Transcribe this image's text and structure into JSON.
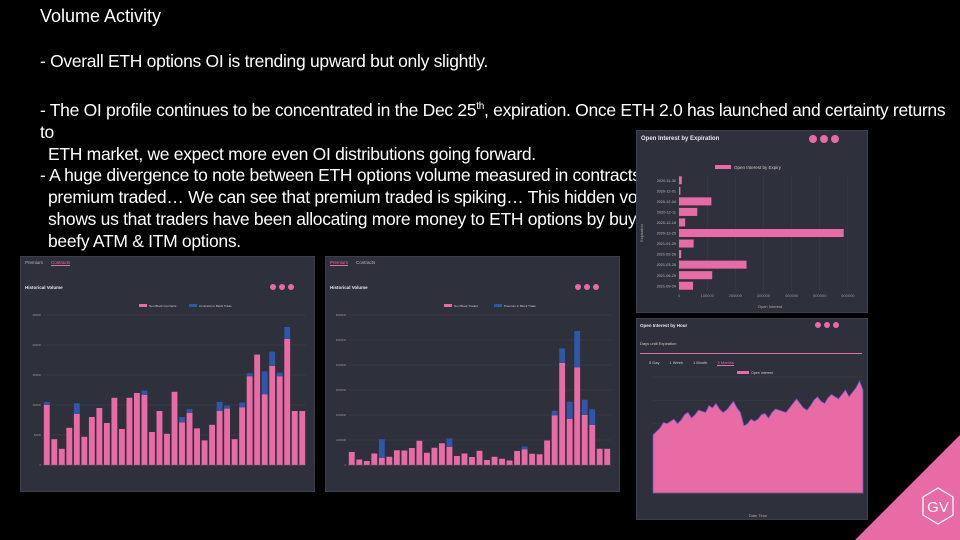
{
  "slide": {
    "title": "Volume Activity",
    "bullet1": "- Overall ETH options OI is trending upward but only slightly.",
    "bullet2_a": "- The OI profile continues to be concentrated in the Dec 25",
    "bullet2_sup": "th",
    "bullet2_b": ", expiration. Once ETH 2.0 has launched and certainty returns to",
    "bullet2_c": "ETH market, we expect more even OI distributions going forward.",
    "bullet3_a": "- A huge divergence to note between ETH options volume measured in contracts vs",
    "bullet3_b": "premium traded… We can see that premium traded is spiking… This hidden volume",
    "bullet3_c": "shows us that traders have been allocating more money to ETH options by buying",
    "bullet3_d": "beefy ATM & ITM options.",
    "logo_text": "GV"
  },
  "colors": {
    "pink": "#e86ba6",
    "blue": "#2f56a8",
    "panel": "#2e303b",
    "logo": "#e86ba6"
  },
  "panel1": {
    "tabs": [
      "Premium",
      "Contracts"
    ],
    "active_tab": "Contracts",
    "title": "Historical Volume",
    "legend": [
      "Non Block Contracts",
      "Contracts in Block Trade"
    ]
  },
  "panel2": {
    "tabs": [
      "Premium",
      "Contracts"
    ],
    "active_tab": "Premium",
    "title": "Historical Volume",
    "legend": [
      "Non Block Traded",
      "Premium in Block Trade"
    ]
  },
  "panel3": {
    "title": "Open Interest by Expiration",
    "legend": "Open Interest by Expiry",
    "ylabel": "Expiration",
    "xlabel": "Open Interest"
  },
  "panel4": {
    "title": "Open Interest by Hour",
    "subtitle": "Days until Expiration",
    "ranges": [
      "5 Day",
      "1 Week",
      "1 Month",
      "3 Months"
    ],
    "active_range": "3 Months",
    "legend": "Open Interest",
    "xlabel": "Date Time"
  },
  "chart_data": [
    {
      "type": "bar",
      "title": "Historical Volume",
      "stacked": true,
      "ylim": [
        0,
        250000
      ],
      "yticks": [
        0,
        50000,
        100000,
        150000,
        200000,
        250000
      ],
      "series": [
        {
          "name": "Non Block Contracts",
          "values": [
            100000,
            43000,
            27000,
            62000,
            85000,
            47000,
            80000,
            95000,
            70000,
            112000,
            60000,
            112000,
            120000,
            117000,
            55000,
            90000,
            52000,
            122000,
            71000,
            87000,
            61000,
            41000,
            67000,
            90000,
            94000,
            43000,
            96000,
            148000,
            184000,
            118000,
            165000,
            148000,
            210000,
            90000,
            90000
          ]
        },
        {
          "name": "Contracts in Block Trade",
          "values": [
            5000,
            0,
            0,
            0,
            18000,
            0,
            0,
            0,
            0,
            0,
            0,
            0,
            0,
            7000,
            0,
            0,
            0,
            0,
            9000,
            6000,
            0,
            0,
            0,
            15000,
            5000,
            0,
            8000,
            5000,
            0,
            38000,
            24000,
            6000,
            20000,
            0,
            0
          ]
        }
      ]
    },
    {
      "type": "bar",
      "title": "Historical Volume",
      "stacked": true,
      "ylim": [
        0,
        6000000
      ],
      "yticks": [
        0,
        1000000,
        2000000,
        3000000,
        4000000,
        5000000,
        6000000
      ],
      "series": [
        {
          "name": "Non Block Traded",
          "values": [
            520000,
            220000,
            160000,
            460000,
            290000,
            330000,
            590000,
            580000,
            680000,
            970000,
            490000,
            690000,
            870000,
            730000,
            360000,
            460000,
            320000,
            570000,
            200000,
            330000,
            250000,
            180000,
            560000,
            630000,
            450000,
            430000,
            980000,
            1980000,
            4080000,
            1850000,
            3900000,
            2000000,
            1600000,
            650000,
            650000
          ]
        },
        {
          "name": "Premium in Block Trade",
          "values": [
            0,
            0,
            0,
            0,
            740000,
            0,
            0,
            0,
            0,
            0,
            0,
            0,
            0,
            330000,
            0,
            0,
            0,
            0,
            0,
            0,
            0,
            0,
            0,
            110000,
            0,
            0,
            0,
            190000,
            580000,
            680000,
            1460000,
            610000,
            630000,
            0,
            0
          ]
        }
      ]
    },
    {
      "type": "bar",
      "orientation": "horizontal",
      "title": "Open Interest by Expiration",
      "categories": [
        "2020-11-30",
        "2020-12-01",
        "2020-12-04",
        "2020-12-11",
        "2020-12-18",
        "2020-12-25",
        "2021-01-29",
        "2021-02-26",
        "2021-03-26",
        "2021-06-25",
        "2021-09-24"
      ],
      "values": [
        10000,
        5000,
        115000,
        65000,
        22000,
        585000,
        52000,
        8000,
        240000,
        118000,
        50000
      ],
      "xlim": [
        0,
        650000
      ],
      "xticks": [
        0,
        100000,
        200000,
        300000,
        400000,
        500000,
        600000
      ]
    },
    {
      "type": "area",
      "title": "Open Interest by Hour",
      "series": [
        {
          "name": "Open Interest",
          "values": [
            0.52,
            0.55,
            0.58,
            0.63,
            0.62,
            0.64,
            0.66,
            0.62,
            0.65,
            0.7,
            0.72,
            0.67,
            0.7,
            0.74,
            0.73,
            0.72,
            0.78,
            0.76,
            0.8,
            0.75,
            0.72,
            0.74,
            0.78,
            0.82,
            0.76,
            0.72,
            0.6,
            0.62,
            0.66,
            0.64,
            0.66,
            0.7,
            0.71,
            0.67,
            0.72,
            0.75,
            0.74,
            0.73,
            0.72,
            0.76,
            0.8,
            0.84,
            0.8,
            0.76,
            0.74,
            0.78,
            0.83,
            0.86,
            0.82,
            0.8,
            0.85,
            0.88,
            0.86,
            0.84,
            0.88,
            0.92,
            0.86,
            0.9,
            0.94,
            1.0,
            0.92
          ]
        }
      ]
    }
  ]
}
